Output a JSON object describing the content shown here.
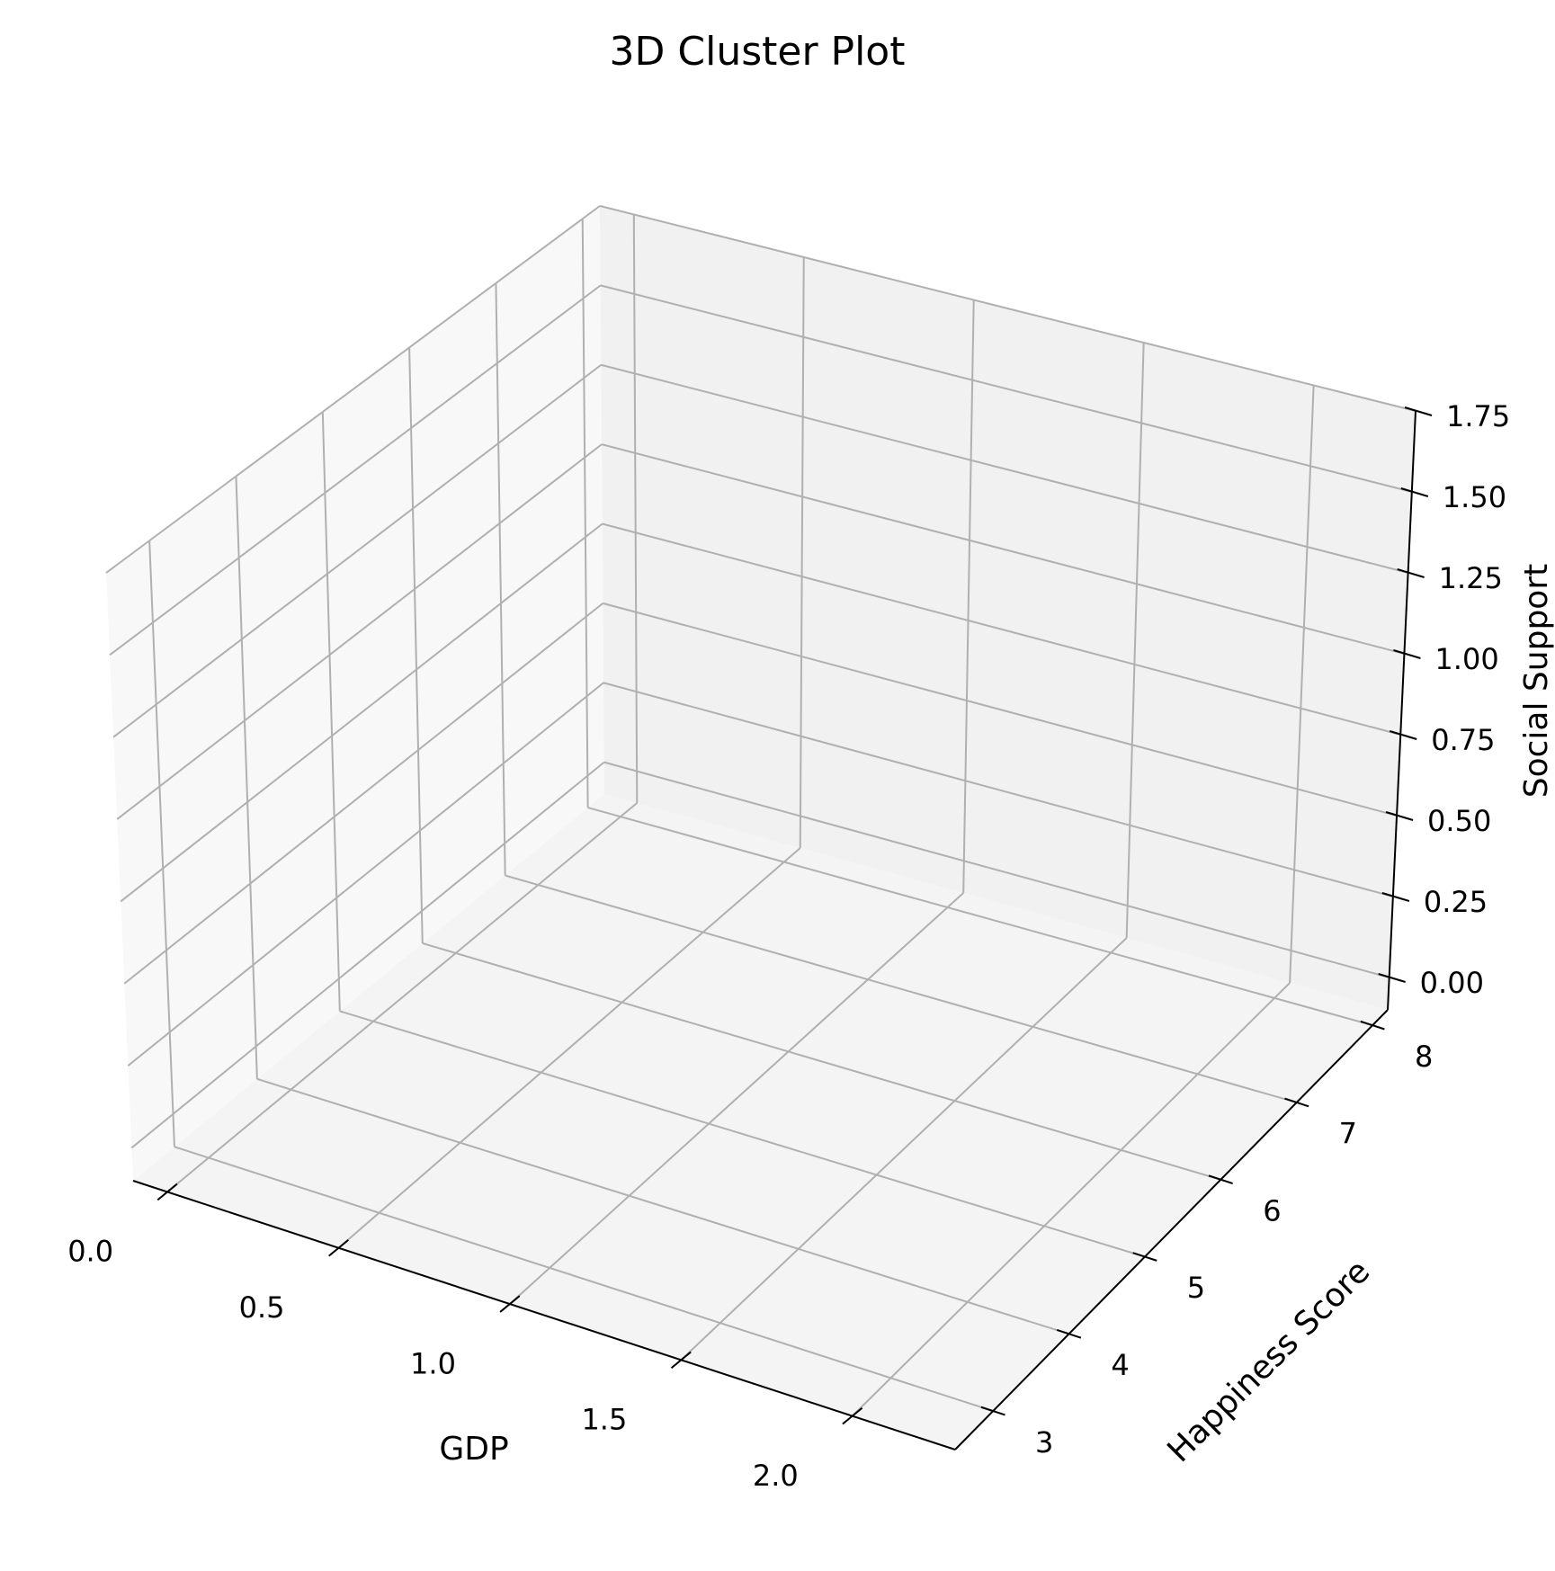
{
  "chart_data": {
    "type": "scatter",
    "projection": "3d",
    "title": "3D Cluster Plot",
    "xlabel": "GDP",
    "ylabel": "Happiness Score",
    "zlabel": "Social Support",
    "xlim": [
      -0.1,
      2.3
    ],
    "ylim": [
      2.5,
      8.2
    ],
    "zlim": [
      -0.1,
      1.75
    ],
    "x_ticks": [
      0.0,
      0.5,
      1.0,
      1.5,
      2.0
    ],
    "x_tick_labels": [
      "0.0",
      "0.5",
      "1.0",
      "1.5",
      "2.0"
    ],
    "y_ticks": [
      3,
      4,
      5,
      6,
      7,
      8
    ],
    "y_tick_labels": [
      "3",
      "4",
      "5",
      "6",
      "7",
      "8"
    ],
    "z_ticks": [
      0.0,
      0.25,
      0.5,
      0.75,
      1.0,
      1.25,
      1.5,
      1.75
    ],
    "z_tick_labels": [
      "0.00",
      "0.25",
      "0.50",
      "0.75",
      "1.00",
      "1.25",
      "1.50",
      "1.75"
    ],
    "grid": true,
    "points": []
  }
}
